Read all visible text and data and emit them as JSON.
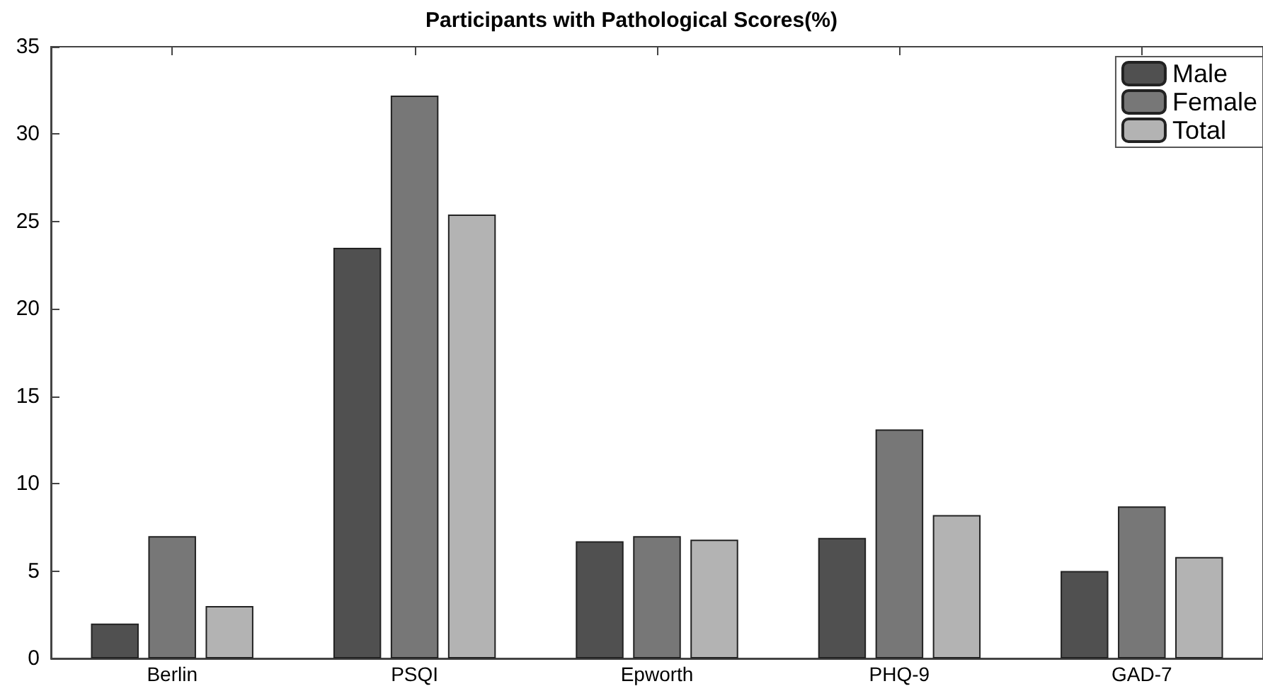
{
  "chart_data": {
    "type": "bar",
    "title": "Participants with Pathological Scores(%)",
    "categories": [
      "Berlin",
      "PSQI",
      "Epworth",
      "PHQ-9",
      "GAD-7"
    ],
    "series": [
      {
        "name": "Male",
        "color": "#505050",
        "values": [
          2.0,
          23.5,
          6.7,
          6.9,
          5.0
        ]
      },
      {
        "name": "Female",
        "color": "#777777",
        "values": [
          7.0,
          32.2,
          7.0,
          13.1,
          8.7
        ]
      },
      {
        "name": "Total",
        "color": "#b3b3b3",
        "values": [
          3.0,
          25.4,
          6.8,
          8.2,
          5.8
        ]
      }
    ],
    "ylim": [
      0,
      35
    ],
    "yticks": [
      0,
      5,
      10,
      15,
      20,
      25,
      30,
      35
    ],
    "grid": false,
    "legend": "top right"
  }
}
